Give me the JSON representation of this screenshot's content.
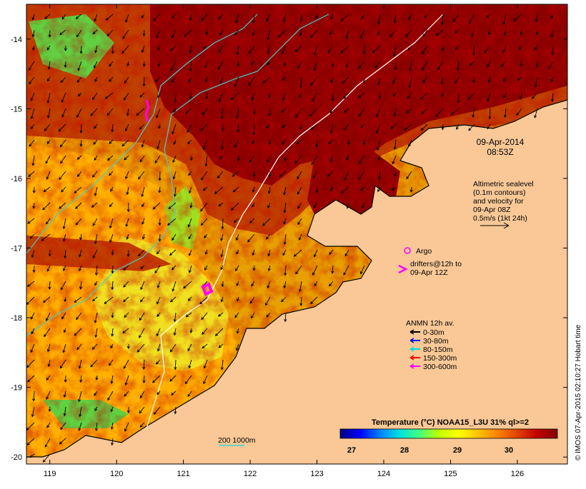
{
  "map": {
    "date": "09-Apr-2014",
    "time": "08:53Z",
    "lat_ticks": [
      "-14",
      "-15",
      "-16",
      "-17",
      "-18",
      "-19",
      "-20"
    ],
    "lon_ticks": [
      "119",
      "120",
      "121",
      "122",
      "123",
      "124",
      "125",
      "126"
    ],
    "lon_range": [
      118.65,
      126.75
    ],
    "lat_range": [
      -20.1,
      -13.5
    ]
  },
  "altimetry": {
    "line1": "Altimetric sealevel",
    "line2": "(0.1m contours)",
    "line3": "and velocity for",
    "line4": "09-Apr 08Z",
    "line5": "0.5m/s (1kt 24h)"
  },
  "argo": {
    "label": "Argo"
  },
  "drifters": {
    "line1": "drifters@12h to",
    "line2": "09-Apr 12Z"
  },
  "anmn": {
    "title": "ANMN 12h av.",
    "items": [
      {
        "label": "0-30m",
        "color": "#000000"
      },
      {
        "label": "30-80m",
        "color": "#0000ff"
      },
      {
        "label": "80-150m",
        "color": "#00e0e0"
      },
      {
        "label": "150-300m",
        "color": "#ff0000"
      },
      {
        "label": "300-600m",
        "color": "#ff00ff"
      }
    ]
  },
  "colorbar": {
    "title": "Temperature (°C) NOAA15_L3U 31% ql>=2",
    "ticks": [
      "27",
      "28",
      "29",
      "30"
    ],
    "stops": [
      "#000080",
      "#0000ff",
      "#0080ff",
      "#00e0e0",
      "#40ff80",
      "#c0ff00",
      "#ffff00",
      "#ffc000",
      "#ff8000",
      "#e04000",
      "#c00000",
      "#800000"
    ]
  },
  "bathy_legend": {
    "label": "200  1000m"
  },
  "credit": "© IMOS 07-Apr-2015 02:10:27 Hobart time",
  "colors": {
    "land": "#f9c896",
    "contour_200": "#40d0d0",
    "contour_1000": "#ffffff",
    "argo": "#ff00ff",
    "drifter": "#ff00ff"
  }
}
